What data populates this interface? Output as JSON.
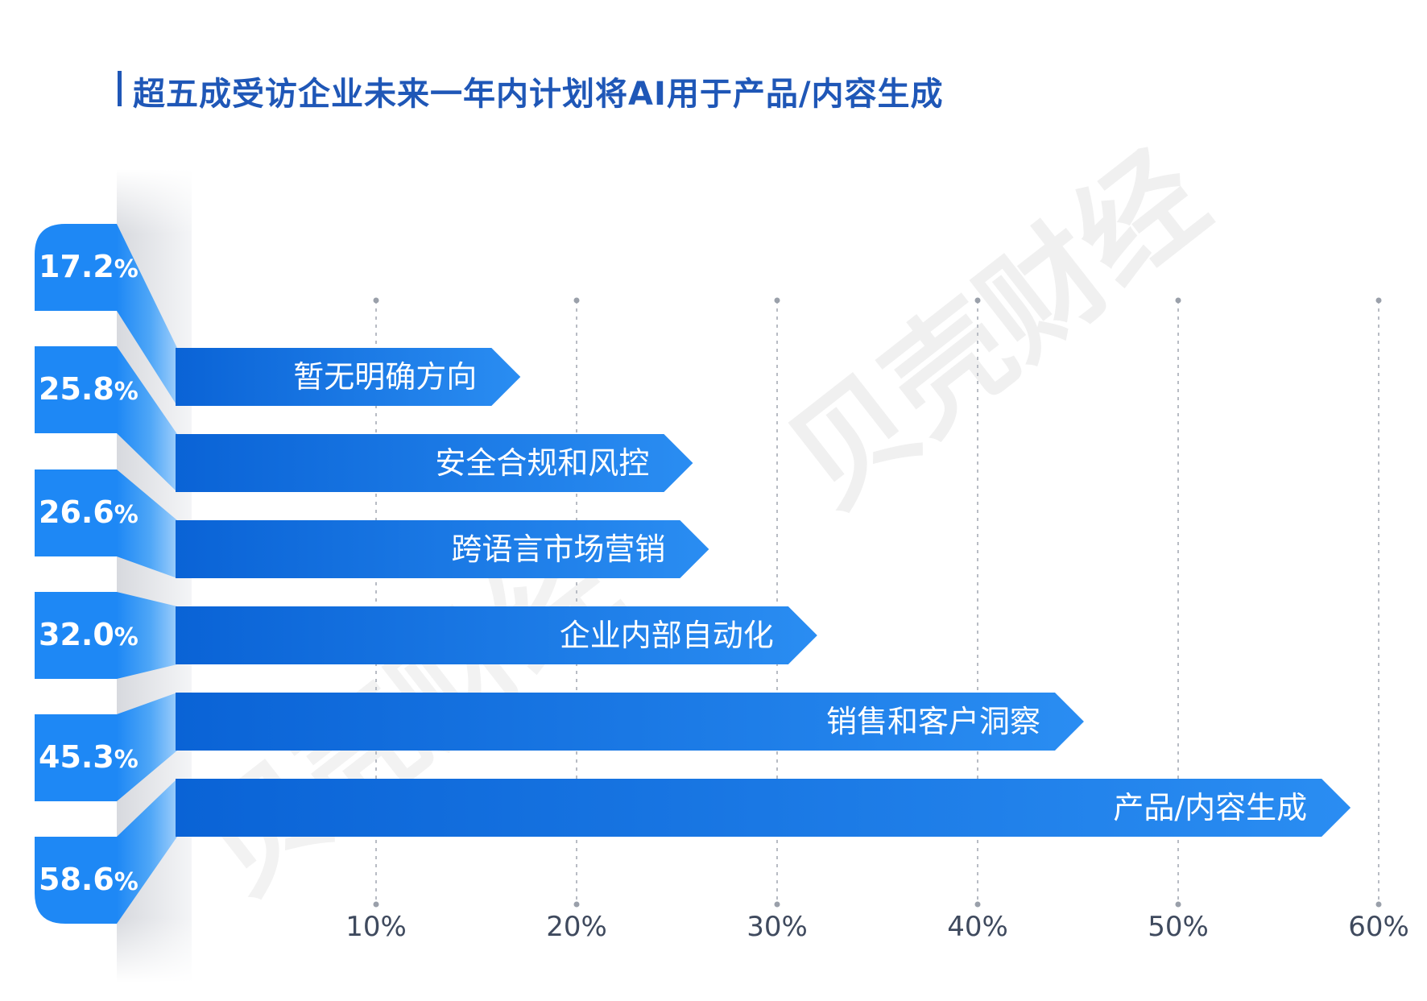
{
  "title": "超五成受访企业未来一年内计划将AI用于产品/内容生成",
  "chart_data": {
    "type": "bar",
    "orientation": "horizontal",
    "title": "超五成受访企业未来一年内计划将AI用于产品/内容生成",
    "categories": [
      "暂无明确方向",
      "安全合规和风控",
      "跨语言市场营销",
      "企业内部自动化",
      "销售和客户洞察",
      "产品/内容生成"
    ],
    "values": [
      17.2,
      25.8,
      26.6,
      32.0,
      45.3,
      58.6
    ],
    "value_labels": [
      "17.2",
      "25.8",
      "26.6",
      "32.0",
      "45.3",
      "58.6"
    ],
    "value_suffix": "%",
    "x_ticks": [
      "10%",
      "20%",
      "30%",
      "40%",
      "50%",
      "60%"
    ],
    "xlim": [
      0,
      60
    ],
    "grid": "vertical dotted",
    "legend": "none"
  },
  "watermark": "贝壳财经",
  "colors": {
    "title": "#1f57b7",
    "bar_dark": "#0a63d6",
    "bar_light": "#2a8df2",
    "tab": "#1e88f5",
    "grid": "#b8bcc4",
    "tick_text": "#3f4a5e"
  }
}
